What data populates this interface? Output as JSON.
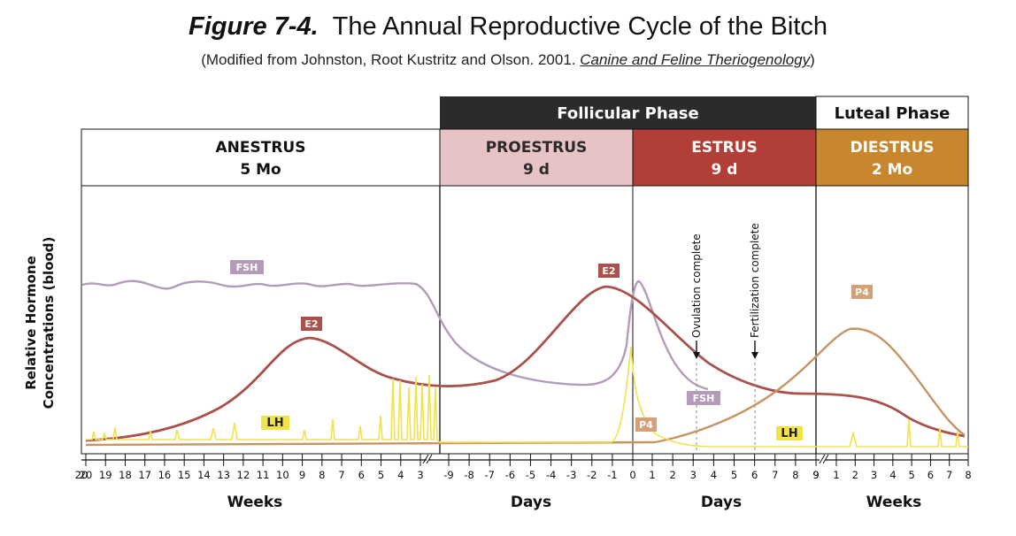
{
  "title": {
    "figure_label": "Figure 7-4.",
    "text": "The Annual Reproductive Cycle of the Bitch"
  },
  "subtitle": {
    "prefix": "(Modified from Johnston, Root Kustritz and Olson. 2001. ",
    "book": "Canine and Feline Theriogenology",
    "suffix": ")"
  },
  "phases": {
    "follicular": "Follicular Phase",
    "luteal": "Luteal Phase"
  },
  "stages": [
    {
      "name": "ANESTRUS",
      "duration": "5 Mo"
    },
    {
      "name": "PROESTRUS",
      "duration": "9 d"
    },
    {
      "name": "ESTRUS",
      "duration": "9 d"
    },
    {
      "name": "DIESTRUS",
      "duration": "2 Mo"
    }
  ],
  "colors": {
    "follicular_bg": "#2b2b2b",
    "proestrus_bg": "#e7c3c6",
    "estrus_bg": "#b23f37",
    "diestrus_bg": "#c8872d",
    "fsh": "#b49bb9",
    "e2": "#a9514b",
    "lh": "#f2e24a",
    "p4": "#c79466",
    "p4_label": "#d6a077"
  },
  "chart_data": {
    "type": "line",
    "ylabel": "Relative Hormone Concentrations (blood)",
    "y_axis_ticks": "none",
    "axes": [
      {
        "unit": "Weeks",
        "ticks": [
          "20",
          "19",
          "18",
          "17",
          "16",
          "15",
          "14",
          "13",
          "12",
          "11",
          "10",
          "9",
          "8",
          "7",
          "6",
          "5",
          "4",
          "3"
        ]
      },
      {
        "unit": "Days",
        "ticks": [
          "-9",
          "-8",
          "-7",
          "-6",
          "-5",
          "-4",
          "-3",
          "-2",
          "-1",
          "0"
        ]
      },
      {
        "unit": "Days",
        "ticks": [
          "1",
          "2",
          "3",
          "4",
          "5",
          "6",
          "7",
          "8",
          "9"
        ]
      },
      {
        "unit": "Weeks",
        "ticks": [
          "1",
          "2",
          "3",
          "4",
          "5",
          "6",
          "7",
          "8"
        ]
      }
    ],
    "events": [
      {
        "label": "Ovulation complete",
        "day": 3
      },
      {
        "label": "Fertilization complete",
        "day": 6
      }
    ],
    "series": [
      {
        "name": "FSH",
        "labels": [
          "FSH",
          "FSH"
        ]
      },
      {
        "name": "E2",
        "labels": [
          "E2",
          "E2"
        ]
      },
      {
        "name": "LH",
        "labels": [
          "LH",
          "LH"
        ]
      },
      {
        "name": "P4",
        "labels": [
          "P4",
          "P4"
        ]
      }
    ]
  }
}
